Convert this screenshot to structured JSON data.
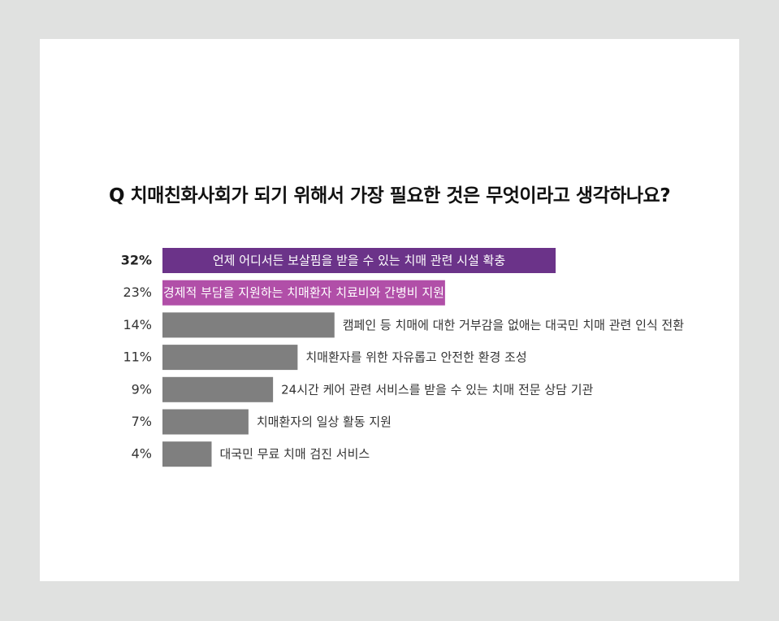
{
  "question": "Q 치매친화사회가 되기 위해서 가장 필요한 것은 무엇이라고 생각하나요?",
  "colors": {
    "page_background": "#e0e1e0",
    "card_background": "#ffffff",
    "rank1": "#6b3389",
    "rank2": "#b14fa8",
    "others": "#7f7f7f"
  },
  "chart_data": {
    "type": "bar",
    "orientation": "horizontal",
    "title": "Q 치매친화사회가 되기 위해서 가장 필요한 것은 무엇이라고 생각하나요?",
    "xlabel": "",
    "ylabel": "",
    "xlim": [
      0,
      32
    ],
    "unit": "%",
    "grid": false,
    "legend": "none",
    "categories": [
      "언제 어디서든 보살핌을 받을 수 있는 치매 관련 시설 확충",
      "경제적 부담을 지원하는 치매환자 치료비와 간병비 지원",
      "캠페인 등 치매에 대한 거부감을 없애는 대국민 치매 관련 인식 전환",
      "치매환자를 위한 자유롭고 안전한 환경 조성",
      "24시간 케어 관련 서비스를 받을 수 있는 치매 전문 상담 기관",
      "치매환자의 일상 활동 지원",
      "대국민 무료 치매 검진 서비스"
    ],
    "values": [
      32,
      23,
      14,
      11,
      9,
      7,
      4
    ],
    "value_labels": [
      "32%",
      "23%",
      "14%",
      "11%",
      "9%",
      "7%",
      "4%"
    ],
    "bar_colors": [
      "#6b3389",
      "#b14fa8",
      "#7f7f7f",
      "#7f7f7f",
      "#7f7f7f",
      "#7f7f7f",
      "#7f7f7f"
    ]
  }
}
